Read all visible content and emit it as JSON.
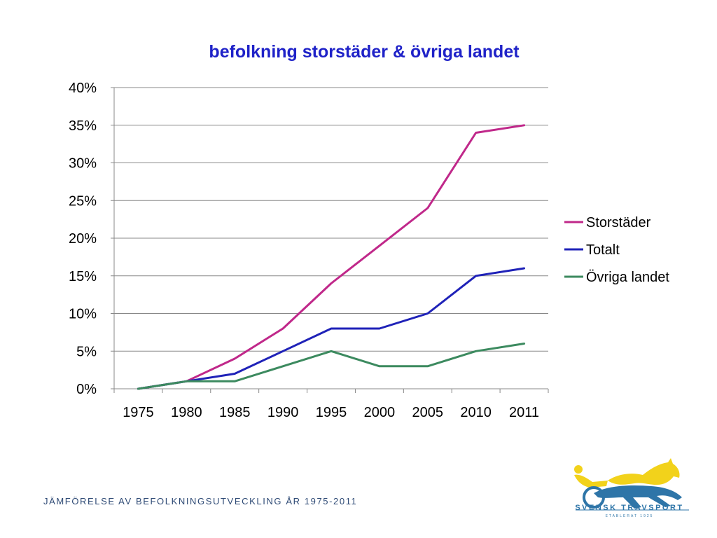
{
  "chart_data": {
    "type": "line",
    "title": "befolkning storstäder & övriga landet",
    "x": [
      "1975",
      "1980",
      "1985",
      "1990",
      "1995",
      "2000",
      "2005",
      "2010",
      "2011"
    ],
    "ylim": [
      0,
      40
    ],
    "y_ticks": [
      "0%",
      "5%",
      "10%",
      "15%",
      "20%",
      "25%",
      "30%",
      "35%",
      "40%"
    ],
    "y_tick_values": [
      0,
      5,
      10,
      15,
      20,
      25,
      30,
      35,
      40
    ],
    "grid": true,
    "legend_position": "right",
    "series": [
      {
        "name": "Storstäder",
        "color": "#c0288a",
        "values": [
          0,
          1,
          4,
          8,
          14,
          19,
          24,
          34,
          35
        ]
      },
      {
        "name": "Totalt",
        "color": "#1f22b8",
        "values": [
          0,
          1,
          2,
          5,
          8,
          8,
          10,
          15,
          16
        ]
      },
      {
        "name": "Övriga landet",
        "color": "#3c8a5f",
        "values": [
          0,
          1,
          1,
          3,
          5,
          3,
          3,
          5,
          6
        ]
      }
    ],
    "title_color": "#1f22c8"
  },
  "footer": {
    "caption": "JÄMFÖRELSE AV BEFOLKNINGSUTVECKLING ÅR 1975-2011"
  },
  "logo": {
    "name": "SVENSK TRAVSPORT",
    "tagline": "ETABLERAT 1925",
    "primary_color": "#2e75a8",
    "accent_color": "#f2d21b"
  }
}
